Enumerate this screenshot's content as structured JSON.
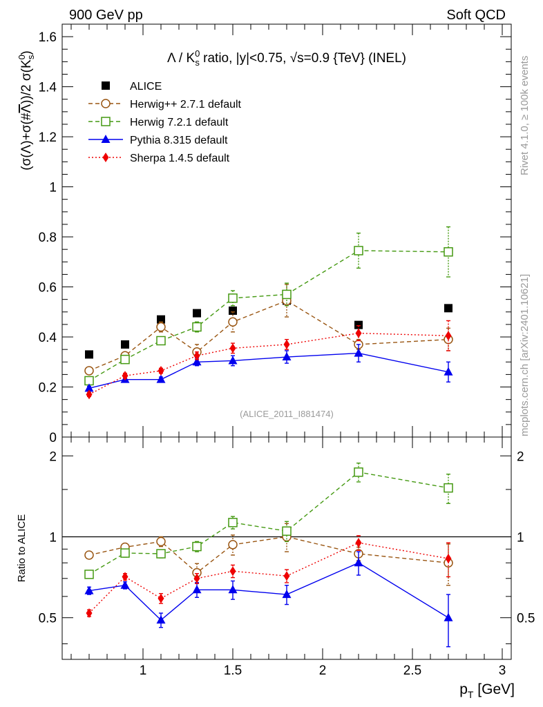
{
  "header": {
    "left": "900 GeV pp",
    "right": "Soft QCD"
  },
  "side_text": {
    "top": "Rivet 4.1.0, ≥ 100k events",
    "bottom": "mcplots.cern.ch [arXiv:2401.10621]"
  },
  "watermark": "(ALICE_2011_I881474)",
  "chart_data": [
    {
      "type": "scatter",
      "title": "Λ / K⁰s ratio, |y|<0.75, √s=0.9 {TeV} (INEL)",
      "xlabel": "pT [GeV]",
      "ylabel": "(σ(Λ)+σ(#Λ))/2 σ(K⁰s)",
      "xlim": [
        0.55,
        3.05
      ],
      "ylim": [
        0,
        1.65
      ],
      "yticks": [
        0,
        0.2,
        0.4,
        0.6,
        0.8,
        1,
        1.2,
        1.4,
        1.6
      ],
      "ytick_labels": [
        "0",
        "0.2",
        "0.4",
        "0.6",
        "0.8",
        "1",
        "1.2",
        "1.4",
        "1.6"
      ],
      "title_parts": {
        "lead": "Λ / K",
        "sup": "0",
        "sub": "s",
        "rest": " ratio, |y|<0.75, √s=0.9 {TeV} (INEL)"
      },
      "ylabel_parts": {
        "main": "(σ(Λ)+σ(#",
        "bar": "Λ",
        "close": "))/2 σ(K",
        "sup": "0",
        "sub": "s",
        "end": ")"
      },
      "legend_position": "top-left",
      "x": [
        0.7,
        0.9,
        1.1,
        1.3,
        1.5,
        1.8,
        2.2,
        2.7
      ],
      "series": [
        {
          "name": "ALICE",
          "color": "#000000",
          "marker": "square-filled",
          "line": "none",
          "values": [
            0.33,
            0.37,
            0.47,
            0.495,
            0.505,
            0.545,
            0.448,
            0.515
          ],
          "errors": [
            0,
            0,
            0,
            0,
            0,
            0,
            0,
            0
          ]
        },
        {
          "name": "Herwig++ 2.7.1 default",
          "color": "#995511",
          "marker": "circle-open",
          "line": "dashed",
          "values": [
            0.265,
            0.325,
            0.44,
            0.34,
            0.46,
            0.545,
            0.37,
            0.39
          ],
          "errors": [
            0.01,
            0.01,
            0.02,
            0.03,
            0.04,
            0.065,
            0.02,
            0.045
          ]
        },
        {
          "name": "Herwig 7.2.1 default",
          "color": "#449911",
          "marker": "square-open",
          "line": "dashed",
          "values": [
            0.225,
            0.31,
            0.385,
            0.44,
            0.555,
            0.57,
            0.745,
            0.74
          ],
          "errors": [
            0.008,
            0.015,
            0.015,
            0.02,
            0.03,
            0.045,
            0.07,
            0.1
          ]
        },
        {
          "name": "Pythia 8.315 default",
          "color": "#0000ee",
          "marker": "triangle-filled",
          "line": "solid",
          "values": [
            0.195,
            0.23,
            0.23,
            0.3,
            0.305,
            0.32,
            0.335,
            0.26
          ],
          "errors": [
            0.008,
            0.01,
            0.01,
            0.015,
            0.02,
            0.025,
            0.035,
            0.04
          ]
        },
        {
          "name": "Sherpa 1.4.5 default",
          "color": "#ee0000",
          "marker": "diamond-filled",
          "line": "dotted",
          "values": [
            0.17,
            0.245,
            0.265,
            0.325,
            0.355,
            0.37,
            0.415,
            0.405
          ],
          "errors": [
            0.008,
            0.01,
            0.01,
            0.015,
            0.02,
            0.02,
            0.03,
            0.06
          ]
        }
      ]
    },
    {
      "type": "scatter",
      "title": "",
      "xlabel": "pT [GeV]",
      "ylabel": "Ratio to ALICE",
      "xlim": [
        0.55,
        3.05
      ],
      "ylim": [
        0.35,
        2.35
      ],
      "xticks": [
        1,
        1.5,
        2,
        2.5,
        3
      ],
      "xtick_labels": [
        "1",
        "1.5",
        "2",
        "2.5",
        "3"
      ],
      "yticks": [
        0.5,
        1,
        2
      ],
      "ytick_labels": [
        "0.5",
        "1",
        "2"
      ],
      "reference_line": 1,
      "x": [
        0.7,
        0.9,
        1.1,
        1.3,
        1.5,
        1.8,
        2.2,
        2.7
      ],
      "series": [
        {
          "name": "Herwig++ 2.7.1 default",
          "color": "#995511",
          "marker": "circle-open",
          "line": "dashed",
          "values": [
            0.855,
            0.915,
            0.96,
            0.735,
            0.935,
            1.0,
            0.865,
            0.8
          ],
          "errors": [
            0.02,
            0.03,
            0.04,
            0.06,
            0.08,
            0.12,
            0.05,
            0.14
          ]
        },
        {
          "name": "Herwig 7.2.1 default",
          "color": "#449911",
          "marker": "square-open",
          "line": "dashed",
          "values": [
            0.725,
            0.87,
            0.865,
            0.92,
            1.13,
            1.05,
            1.74,
            1.52
          ],
          "errors": [
            0.015,
            0.03,
            0.03,
            0.04,
            0.06,
            0.09,
            0.14,
            0.19
          ]
        },
        {
          "name": "Pythia 8.315 default",
          "color": "#0000ee",
          "marker": "triangle-filled",
          "line": "solid",
          "values": [
            0.63,
            0.66,
            0.49,
            0.635,
            0.635,
            0.61,
            0.8,
            0.5
          ],
          "errors": [
            0.02,
            0.02,
            0.03,
            0.04,
            0.05,
            0.05,
            0.08,
            0.11
          ]
        },
        {
          "name": "Sherpa 1.4.5 default",
          "color": "#ee0000",
          "marker": "diamond-filled",
          "line": "dotted",
          "values": [
            0.52,
            0.71,
            0.59,
            0.7,
            0.745,
            0.715,
            0.95,
            0.83
          ],
          "errors": [
            0.015,
            0.02,
            0.025,
            0.03,
            0.04,
            0.04,
            0.06,
            0.12
          ]
        }
      ]
    }
  ]
}
